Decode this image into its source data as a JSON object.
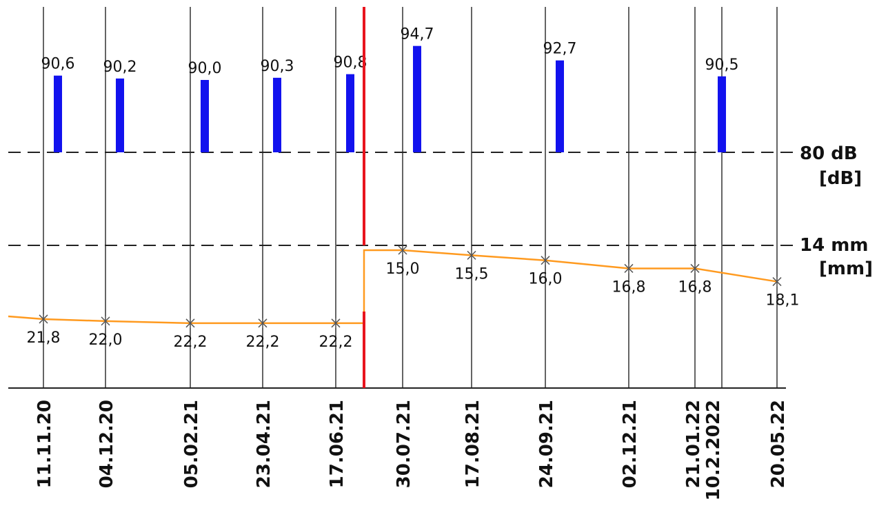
{
  "chart_data": {
    "type": "bar",
    "dates": [
      "11.11.20",
      "04.12.20",
      "05.02.21",
      "23.04.21",
      "17.06.21",
      "30.07.21",
      "17.08.21",
      "24.09.21",
      "02.12.21",
      "21.01.22",
      "10.2.2022",
      "20.05.22"
    ],
    "series": [
      {
        "type": "bar",
        "unit": "dB",
        "color": "#1212ee",
        "points": [
          {
            "date": "11.11.20",
            "value": 90.6,
            "label": "90,6"
          },
          {
            "date": "04.12.20",
            "value": 90.2,
            "label": "90,2"
          },
          {
            "date": "05.02.21",
            "value": 90.0,
            "label": "90,0"
          },
          {
            "date": "23.04.21",
            "value": 90.3,
            "label": "90,3"
          },
          {
            "date": "17.06.21",
            "value": 90.8,
            "label": "90,8"
          },
          {
            "date": "30.07.21",
            "value": 94.7,
            "label": "94,7"
          },
          {
            "date": "24.09.21",
            "value": 92.7,
            "label": "92,7"
          },
          {
            "date": "10.2.2022",
            "value": 90.5,
            "label": "90,5"
          }
        ]
      },
      {
        "type": "line",
        "unit": "mm",
        "color": "#ff9a1f",
        "points": [
          {
            "date": "11.11.20",
            "value": 21.8,
            "label": "21,8"
          },
          {
            "date": "04.12.20",
            "value": 22.0,
            "label": "22,0"
          },
          {
            "date": "05.02.21",
            "value": 22.2,
            "label": "22,2"
          },
          {
            "date": "23.04.21",
            "value": 22.2,
            "label": "22,2"
          },
          {
            "date": "17.06.21",
            "value": 22.2,
            "label": "22,2"
          },
          {
            "date": "30.07.21",
            "value": 15.0,
            "label": "15,0"
          },
          {
            "date": "17.08.21",
            "value": 15.5,
            "label": "15,5"
          },
          {
            "date": "24.09.21",
            "value": 16.0,
            "label": "16,0"
          },
          {
            "date": "02.12.21",
            "value": 16.8,
            "label": "16,8"
          },
          {
            "date": "21.01.22",
            "value": 16.8,
            "label": "16,8"
          },
          {
            "date": "20.05.22",
            "value": 18.1,
            "label": "18,1"
          }
        ]
      }
    ],
    "reference_lines": [
      {
        "value": 80,
        "unit": "dB",
        "label": "80 dB",
        "unit_label": "[dB]",
        "style": "dashed"
      },
      {
        "value": 14,
        "unit": "mm",
        "label": "14 mm",
        "unit_label": "[mm]",
        "style": "dashed"
      }
    ],
    "event_marker": {
      "between": [
        "17.06.21",
        "30.07.21"
      ],
      "color": "#e8141e"
    },
    "grid": "vertical lines at each date",
    "line_color": "#222222",
    "title": "",
    "xlabel": "",
    "ylabel": ""
  }
}
